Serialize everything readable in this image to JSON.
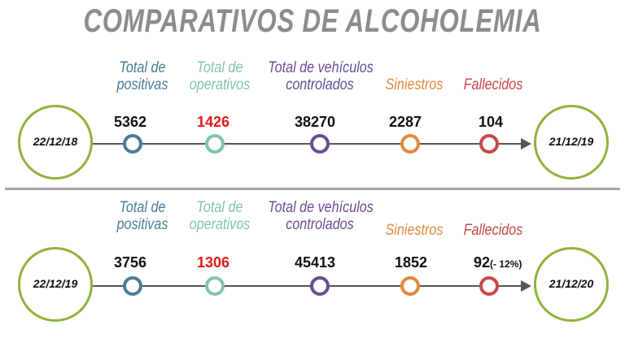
{
  "title": "COMPARATIVOS DE ALCOHOLEMIA",
  "colors": {
    "positivas": "#4a7c96",
    "operativos": "#82c4a8",
    "vehiculos": "#6a4c93",
    "siniestros": "#e08a3c",
    "fallecidos": "#c74848",
    "date_ring": "#8fb23a",
    "highlight_value": "#e01b1b"
  },
  "labels": {
    "positivas": "Total de positivas",
    "operativos": "Total de operativos",
    "vehiculos": "Total de vehículos controlados",
    "siniestros": "Siniestros",
    "fallecidos": "Fallecidos"
  },
  "panels": [
    {
      "start_date": "22/12/18",
      "end_date": "21/12/19",
      "values": {
        "positivas": "5362",
        "operativos": "1426",
        "vehiculos": "38270",
        "siniestros": "2287",
        "fallecidos": "104",
        "fallecidos_change": ""
      }
    },
    {
      "start_date": "22/12/19",
      "end_date": "21/12/20",
      "values": {
        "positivas": "3756",
        "operativos": "1306",
        "vehiculos": "45413",
        "siniestros": "1852",
        "fallecidos": "92",
        "fallecidos_change": "(- 12%)"
      }
    }
  ]
}
